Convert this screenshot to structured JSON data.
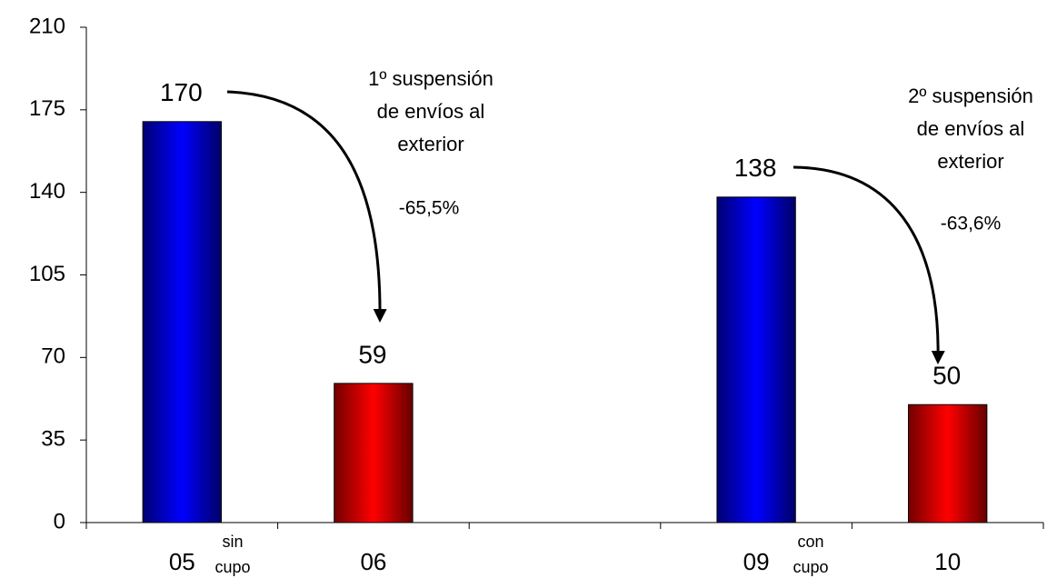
{
  "chart_data": {
    "type": "bar",
    "categories": [
      "05",
      "06",
      null,
      "09",
      "10"
    ],
    "values": [
      170,
      59,
      null,
      138,
      50
    ],
    "colors": [
      "#0000ff",
      "#ff0000",
      null,
      "#0000ff",
      "#ff0000"
    ],
    "ylim": [
      0,
      210
    ],
    "yticks": [
      0,
      35,
      70,
      105,
      140,
      175,
      210
    ],
    "grid": false,
    "annotations": [
      {
        "lines": [
          "sin",
          "cupo"
        ]
      },
      {
        "lines": [
          "1º suspensión",
          "de envíos al",
          "exterior"
        ]
      },
      {
        "lines": [
          "-65,5%"
        ]
      },
      {
        "lines": [
          "con",
          "cupo"
        ]
      },
      {
        "lines": [
          "2º suspensión",
          "de envíos al",
          "exterior"
        ]
      },
      {
        "lines": [
          "-63,6%"
        ]
      }
    ]
  }
}
